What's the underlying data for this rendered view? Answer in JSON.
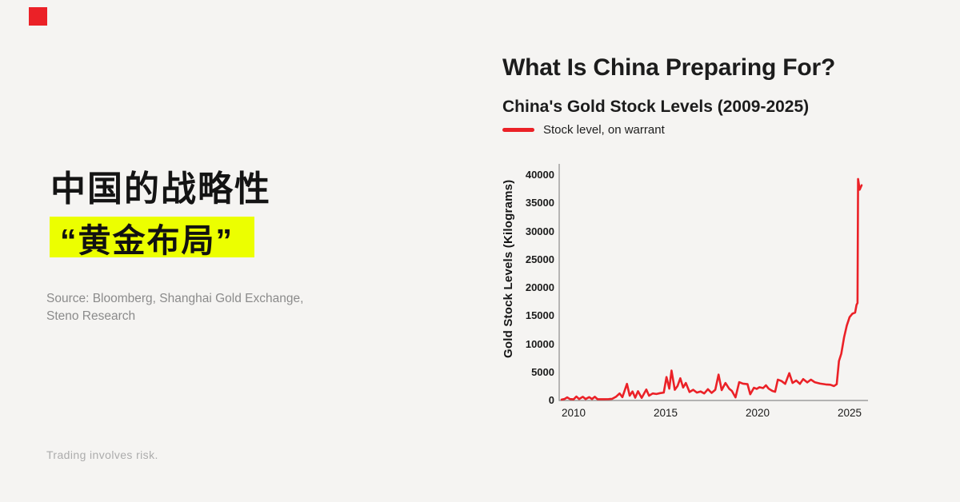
{
  "page": {
    "background": "#f5f4f2",
    "accent_red": "#eb2127",
    "highlight_yellow": "#ecff00"
  },
  "logo": {
    "color": "#eb2127"
  },
  "left": {
    "title_cn": "中国的战略性",
    "highlight_cn": "“黄金布局”",
    "source_line1": "Source: Bloomberg, Shanghai Gold Exchange,",
    "source_line2": "Steno Research",
    "disclaimer": "Trading involves risk."
  },
  "header": {
    "title": "What Is China Preparing For?",
    "subtitle": "China's Gold Stock Levels (2009-2025)",
    "legend_label": "Stock level, on warrant"
  },
  "chart_data": {
    "type": "line",
    "title": "China's Gold Stock Levels (2009-2025)",
    "xlabel": "",
    "ylabel": "Gold Stock Levels (Kilograms)",
    "x_ticks": [
      2010,
      2015,
      2020,
      2025
    ],
    "y_ticks": [
      0,
      5000,
      10000,
      15000,
      20000,
      25000,
      30000,
      35000,
      40000
    ],
    "xlim": [
      2009.2,
      2026.0
    ],
    "ylim": [
      0,
      40000
    ],
    "grid": false,
    "legend_position": "top-left",
    "series": [
      {
        "name": "Stock level, on warrant",
        "color": "#eb2127",
        "points": [
          [
            2009.35,
            150
          ],
          [
            2009.5,
            250
          ],
          [
            2009.65,
            550
          ],
          [
            2009.8,
            250
          ],
          [
            2010.0,
            200
          ],
          [
            2010.15,
            700
          ],
          [
            2010.3,
            250
          ],
          [
            2010.5,
            650
          ],
          [
            2010.65,
            250
          ],
          [
            2010.85,
            600
          ],
          [
            2011.0,
            250
          ],
          [
            2011.15,
            650
          ],
          [
            2011.3,
            220
          ],
          [
            2011.6,
            230
          ],
          [
            2011.9,
            240
          ],
          [
            2012.1,
            300
          ],
          [
            2012.3,
            650
          ],
          [
            2012.5,
            1250
          ],
          [
            2012.65,
            600
          ],
          [
            2012.9,
            2950
          ],
          [
            2013.05,
            850
          ],
          [
            2013.2,
            1600
          ],
          [
            2013.35,
            500
          ],
          [
            2013.5,
            1650
          ],
          [
            2013.7,
            450
          ],
          [
            2013.95,
            1950
          ],
          [
            2014.1,
            850
          ],
          [
            2014.3,
            1250
          ],
          [
            2014.5,
            1150
          ],
          [
            2014.7,
            1300
          ],
          [
            2014.9,
            1400
          ],
          [
            2015.05,
            4150
          ],
          [
            2015.2,
            2100
          ],
          [
            2015.32,
            5300
          ],
          [
            2015.5,
            1900
          ],
          [
            2015.65,
            2600
          ],
          [
            2015.8,
            3950
          ],
          [
            2015.95,
            2300
          ],
          [
            2016.1,
            3100
          ],
          [
            2016.3,
            1500
          ],
          [
            2016.5,
            1900
          ],
          [
            2016.7,
            1400
          ],
          [
            2016.9,
            1600
          ],
          [
            2017.1,
            1250
          ],
          [
            2017.3,
            2000
          ],
          [
            2017.5,
            1350
          ],
          [
            2017.7,
            1900
          ],
          [
            2017.88,
            4600
          ],
          [
            2018.05,
            1850
          ],
          [
            2018.25,
            3100
          ],
          [
            2018.45,
            2100
          ],
          [
            2018.6,
            1700
          ],
          [
            2018.8,
            550
          ],
          [
            2019.0,
            3250
          ],
          [
            2019.2,
            3000
          ],
          [
            2019.45,
            2900
          ],
          [
            2019.6,
            1100
          ],
          [
            2019.8,
            2250
          ],
          [
            2019.95,
            2050
          ],
          [
            2020.1,
            2350
          ],
          [
            2020.3,
            2200
          ],
          [
            2020.45,
            2700
          ],
          [
            2020.6,
            2100
          ],
          [
            2020.8,
            1700
          ],
          [
            2020.95,
            1550
          ],
          [
            2021.1,
            3700
          ],
          [
            2021.3,
            3450
          ],
          [
            2021.5,
            2950
          ],
          [
            2021.72,
            4850
          ],
          [
            2021.9,
            3100
          ],
          [
            2022.1,
            3550
          ],
          [
            2022.3,
            2950
          ],
          [
            2022.48,
            3800
          ],
          [
            2022.7,
            3200
          ],
          [
            2022.9,
            3700
          ],
          [
            2023.1,
            3250
          ],
          [
            2023.4,
            3000
          ],
          [
            2023.7,
            2850
          ],
          [
            2023.95,
            2800
          ],
          [
            2024.15,
            2550
          ],
          [
            2024.3,
            2900
          ],
          [
            2024.42,
            7000
          ],
          [
            2024.55,
            8300
          ],
          [
            2024.7,
            11200
          ],
          [
            2024.85,
            13300
          ],
          [
            2025.0,
            14800
          ],
          [
            2025.15,
            15400
          ],
          [
            2025.3,
            15600
          ],
          [
            2025.38,
            17000
          ],
          [
            2025.43,
            17300
          ],
          [
            2025.46,
            39300
          ],
          [
            2025.55,
            37400
          ],
          [
            2025.65,
            38200
          ]
        ]
      }
    ]
  }
}
